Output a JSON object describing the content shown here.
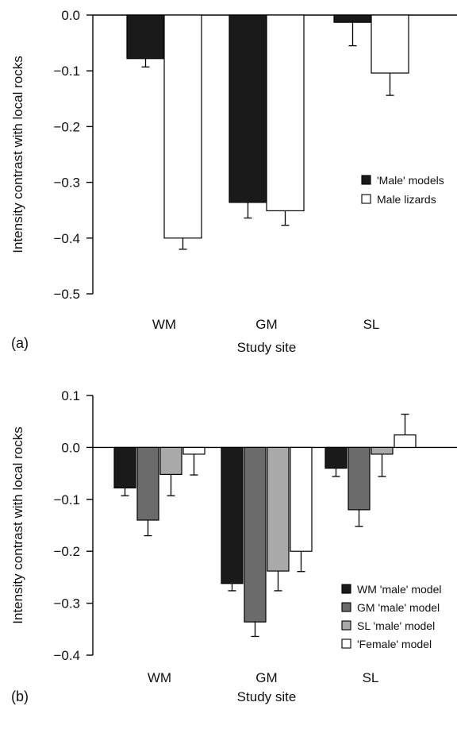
{
  "chart_data": [
    {
      "type": "bar",
      "panel_label": "(a)",
      "categories": [
        "WM",
        "GM",
        "SL"
      ],
      "series": [
        {
          "name": "'Male' models",
          "color": "#1a1a1a",
          "values": [
            -0.078,
            -0.336,
            -0.013
          ],
          "errors": [
            0.015,
            0.028,
            0.042
          ]
        },
        {
          "name": "Male lizards",
          "color": "#ffffff",
          "values": [
            -0.4,
            -0.351,
            -0.104
          ],
          "errors": [
            0.02,
            0.026,
            0.04
          ]
        }
      ],
      "xlabel": "Study site",
      "ylabel": "Intensity contrast with local rocks",
      "ylim": [
        -0.5,
        0.0
      ],
      "yticks": [
        0.0,
        -0.1,
        -0.2,
        -0.3,
        -0.4,
        -0.5
      ],
      "ytick_labels": [
        "0.0",
        "−0.1",
        "−0.2",
        "−0.3",
        "−0.4",
        "−0.5"
      ],
      "grid": false,
      "legend_position": "right"
    },
    {
      "type": "bar",
      "panel_label": "(b)",
      "categories": [
        "WM",
        "GM",
        "SL"
      ],
      "series": [
        {
          "name": "WM 'male' model",
          "color": "#1a1a1a",
          "values": [
            -0.078,
            -0.262,
            -0.04
          ],
          "errors": [
            0.015,
            0.014,
            0.016
          ]
        },
        {
          "name": "GM 'male' model",
          "color": "#6b6b6b",
          "values": [
            -0.14,
            -0.336,
            -0.12
          ],
          "errors": [
            0.03,
            0.028,
            0.032
          ]
        },
        {
          "name": "SL 'male' model",
          "color": "#a9a9a9",
          "values": [
            -0.052,
            -0.238,
            -0.013
          ],
          "errors": [
            0.041,
            0.038,
            0.043
          ]
        },
        {
          "name": "'Female' model",
          "color": "#ffffff",
          "values": [
            -0.013,
            -0.2,
            0.024
          ],
          "errors": [
            0.04,
            0.039,
            0.04
          ]
        }
      ],
      "xlabel": "Study site",
      "ylabel": "Intensity contrast with local rocks",
      "ylim": [
        -0.4,
        0.1
      ],
      "yticks": [
        0.1,
        0.0,
        -0.1,
        -0.2,
        -0.3,
        -0.4
      ],
      "ytick_labels": [
        "0.1",
        "0.0",
        "−0.1",
        "−0.2",
        "−0.3",
        "−0.4"
      ],
      "grid": false,
      "legend_position": "right"
    }
  ]
}
